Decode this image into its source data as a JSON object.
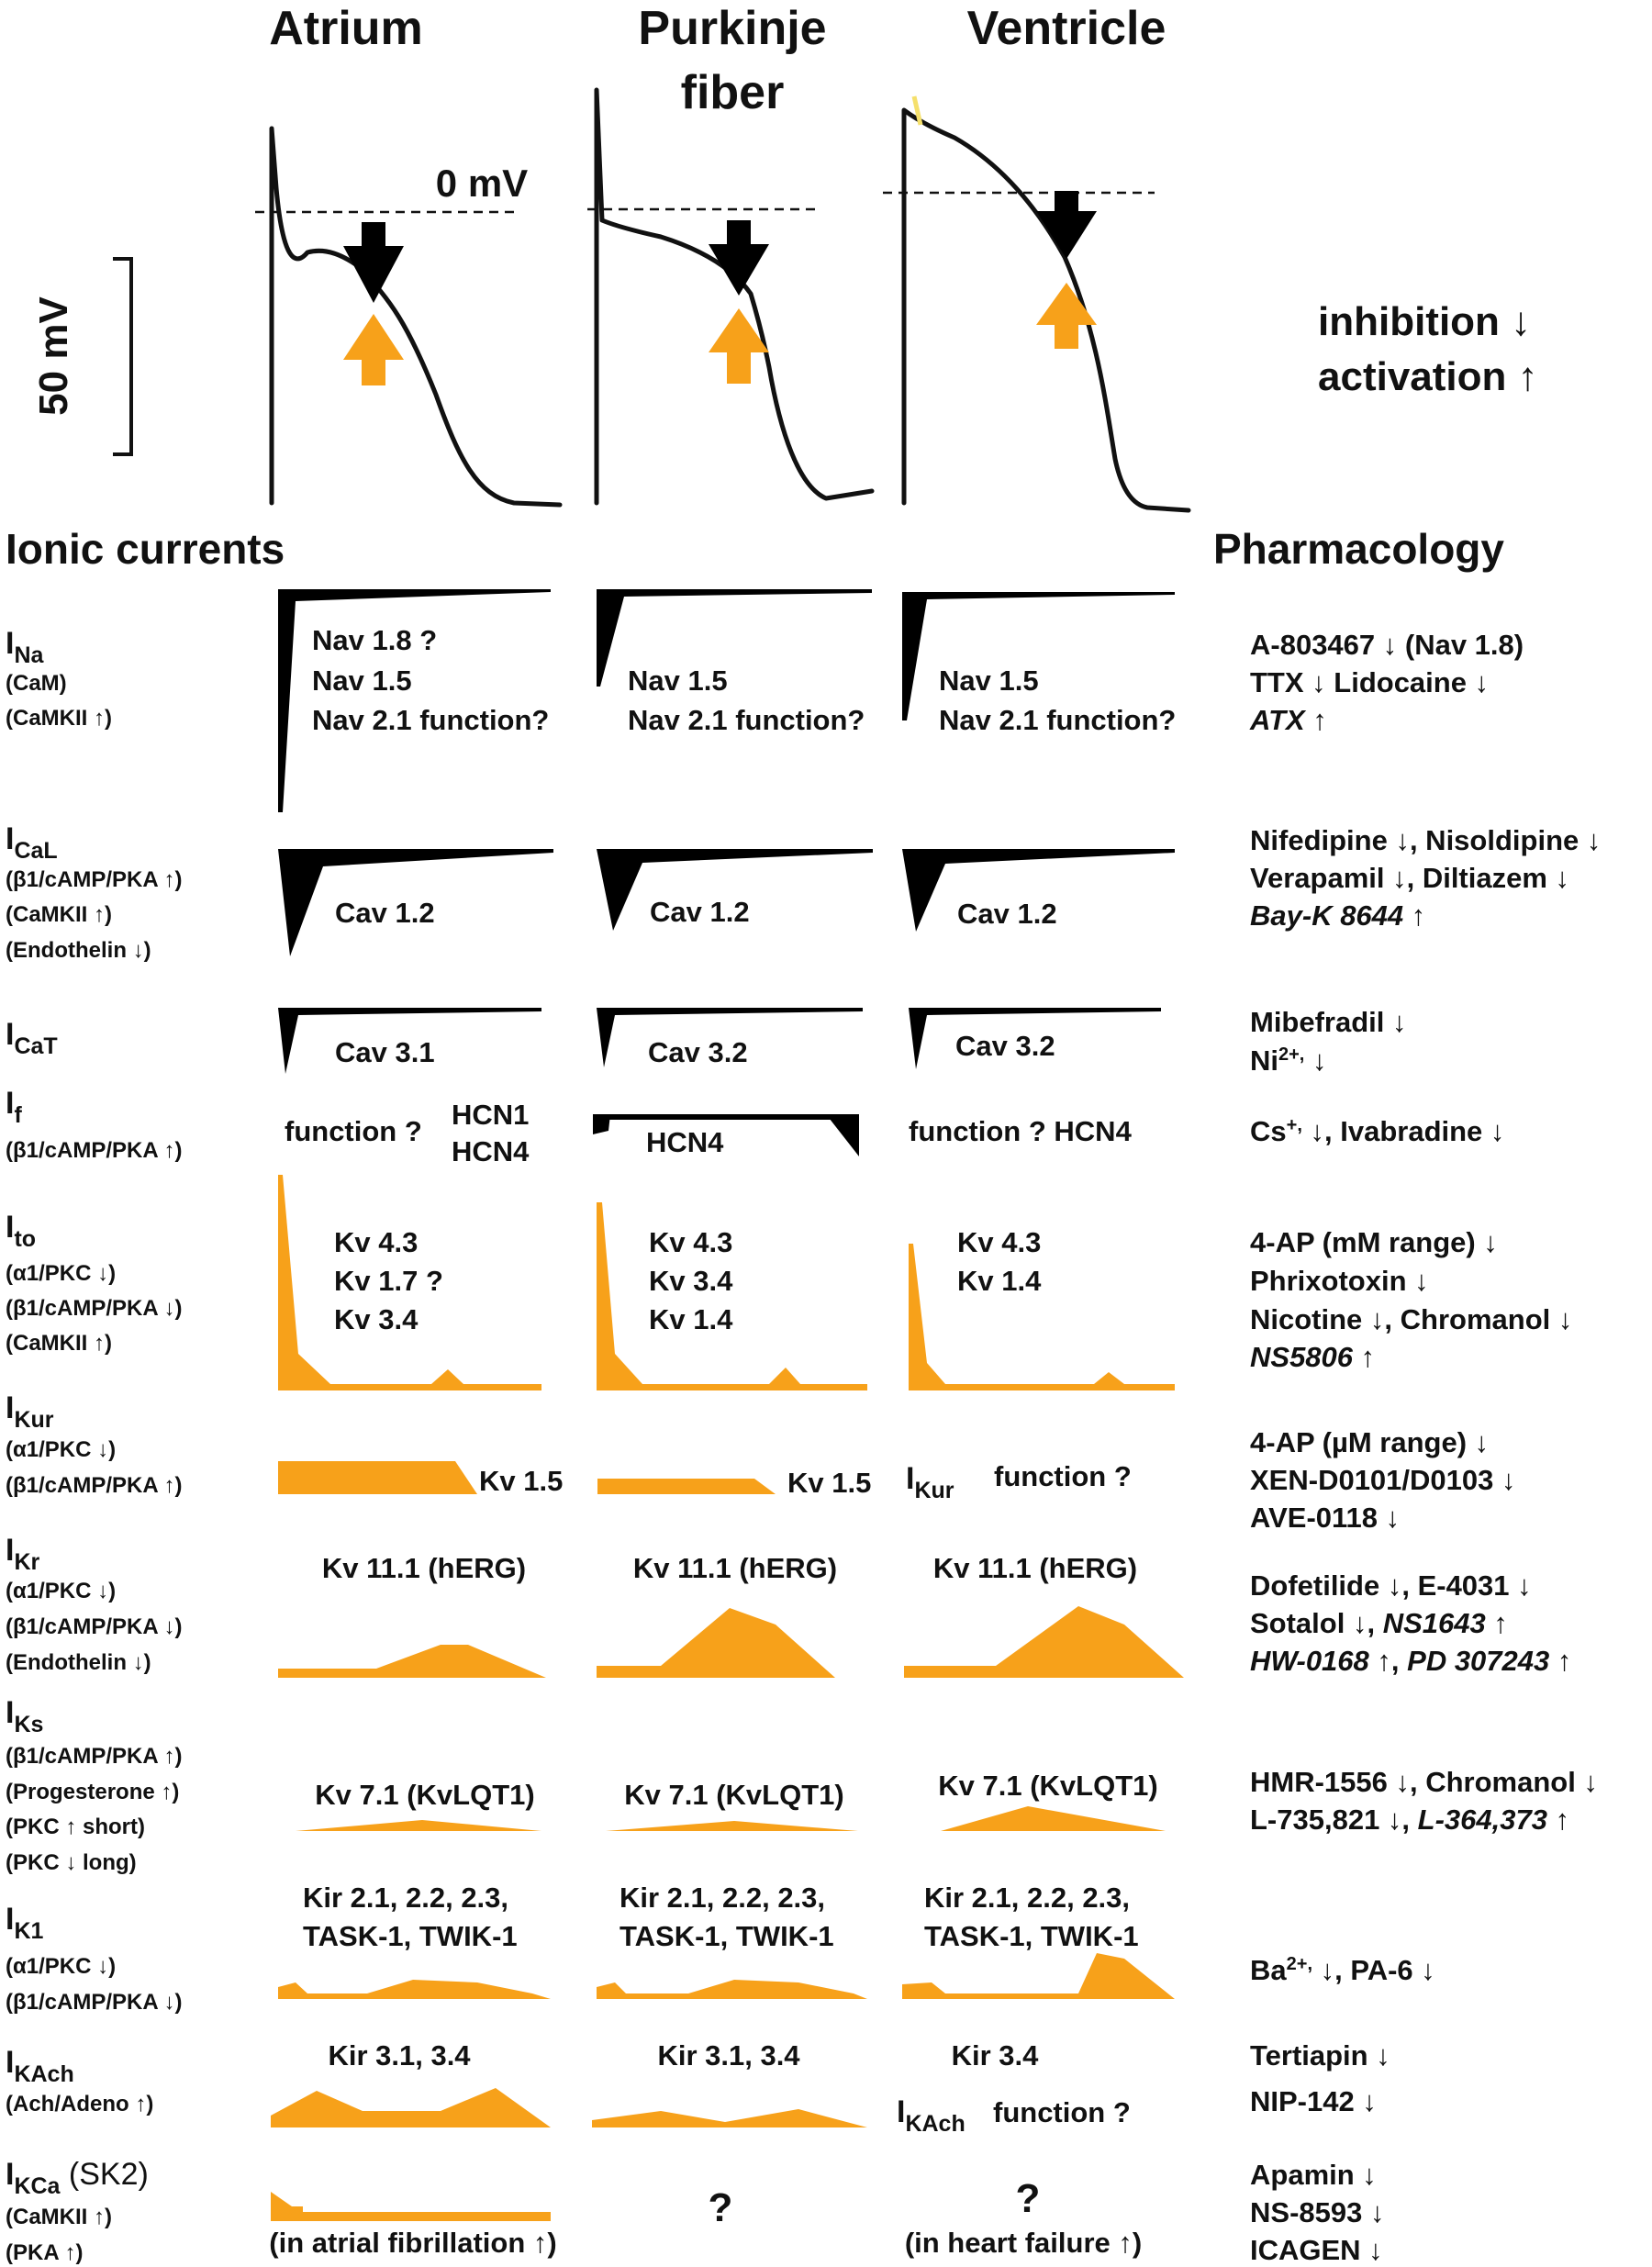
{
  "columns": {
    "atrium": "Atrium",
    "purkinje_line1": "Purkinje",
    "purkinje_line2": "fiber",
    "ventricle": "Ventricle"
  },
  "scale": {
    "zero_label": "0 mV",
    "bar_label": "50 mV"
  },
  "legend": {
    "inhibition": "inhibition ↓",
    "activation": "activation ↑"
  },
  "sections": {
    "ionic_currents": "Ionic currents",
    "pharmacology": "Pharmacology"
  },
  "colors": {
    "activation_arrow": "#f7a11a",
    "inhibition_arrow": "#000000",
    "current_fill": "#f7a11a"
  },
  "rows": {
    "ina": {
      "base": "I",
      "sub": "Na",
      "regs": [
        "(CaM)",
        "(CaMKII ↑)"
      ],
      "atrium": [
        "Nav 1.8 ?",
        "Nav 1.5",
        "Nav 2.1 function?"
      ],
      "purkinje": [
        "Nav 1.5",
        "Nav 2.1 function?"
      ],
      "ventricle": [
        "Nav 1.5",
        "Nav 2.1 function?"
      ],
      "pharm": [
        "A-803467 ↓ (Nav 1.8)",
        "TTX ↓ Lidocaine ↓"
      ],
      "pharm_italic": "ATX",
      "pharm_italic_tail": " ↑"
    },
    "ical": {
      "base": "I",
      "sub": "CaL",
      "regs": [
        "(β1/cAMP/PKA ↑)",
        "(CaMKII ↑)",
        "(Endothelin ↓)"
      ],
      "atrium": "Cav 1.2",
      "purkinje": "Cav 1.2",
      "ventricle": "Cav 1.2",
      "pharm": [
        "Nifedipine ↓, Nisoldipine ↓",
        "Verapamil ↓, Diltiazem ↓"
      ],
      "pharm_italic": "Bay-K 8644",
      "pharm_italic_tail": " ↑"
    },
    "icat": {
      "base": "I",
      "sub": "CaT",
      "atrium": "Cav 3.1",
      "purkinje": "Cav 3.2",
      "ventricle": "Cav 3.2",
      "pharm1": "Mibefradil ↓",
      "pharm2_a": "Ni",
      "pharm2_sup": "2+,",
      "pharm2_b": " ↓"
    },
    "if": {
      "base": "I",
      "sub": "f",
      "regs": [
        "(β1/cAMP/PKA ↑)"
      ],
      "atrium_fn": "function ?",
      "atrium_hcn1": "HCN1",
      "atrium_hcn4": "HCN4",
      "purkinje": "HCN4",
      "ventricle": "function ?  HCN4",
      "pharm_a": "Cs",
      "pharm_sup": "+,",
      "pharm_b": " ↓, Ivabradine ↓"
    },
    "ito": {
      "base": "I",
      "sub": "to",
      "regs": [
        "(α1/PKC ↓)",
        "(β1/cAMP/PKA ↓)",
        "(CaMKII ↑)"
      ],
      "atrium": [
        "Kv 4.3",
        "Kv 1.7 ?",
        "Kv 3.4"
      ],
      "purkinje": [
        "Kv 4.3",
        "Kv 3.4",
        "Kv 1.4"
      ],
      "ventricle": [
        "Kv 4.3",
        "Kv 1.4"
      ],
      "pharm": [
        "4-AP (mM range) ↓",
        "Phrixotoxin ↓",
        "Nicotine ↓, Chromanol ↓"
      ],
      "pharm_italic": "NS5806",
      "pharm_italic_tail": " ↑"
    },
    "ikur": {
      "base": "I",
      "sub": "Kur",
      "regs": [
        "(α1/PKC ↓)",
        "(β1/cAMP/PKA ↑)"
      ],
      "atrium": "Kv 1.5",
      "purkinje": "Kv 1.5",
      "ventricle_base": "I",
      "ventricle_sub": "Kur",
      "ventricle_fn": "function ?",
      "pharm": [
        "4-AP (µM range) ↓",
        "XEN-D0101/D0103 ↓",
        "AVE-0118 ↓"
      ]
    },
    "ikr": {
      "base": "I",
      "sub": "Kr",
      "regs": [
        "(α1/PKC ↓)",
        "(β1/cAMP/PKA ↓)",
        "(Endothelin ↓)"
      ],
      "atrium": "Kv 11.1 (hERG)",
      "purkinje": "Kv 11.1 (hERG)",
      "ventricle": "Kv 11.1 (hERG)",
      "pharm1": "Dofetilide ↓, E-4031 ↓",
      "pharm2_a": "Sotalol ↓, ",
      "pharm2_i": "NS1643",
      "pharm2_b": " ↑",
      "pharm3_i1": "HW-0168",
      "pharm3_m": " ↑, ",
      "pharm3_i2": "PD 307243",
      "pharm3_b": " ↑"
    },
    "iks": {
      "base": "I",
      "sub": "Ks",
      "regs": [
        "(β1/cAMP/PKA ↑)",
        "(Progesterone ↑)",
        "(PKC ↑ short)",
        "(PKC ↓ long)"
      ],
      "atrium": "Kv 7.1 (KvLQT1)",
      "purkinje": "Kv 7.1 (KvLQT1)",
      "ventricle": "Kv 7.1 (KvLQT1)",
      "pharm1": "HMR-1556 ↓, Chromanol ↓",
      "pharm2_a": "L-735,821 ↓, ",
      "pharm2_i": "L-364,373",
      "pharm2_b": " ↑"
    },
    "ik1": {
      "base": "I",
      "sub": "K1",
      "regs": [
        "(α1/PKC ↓)",
        "(β1/cAMP/PKA ↓)"
      ],
      "line1": "Kir 2.1, 2.2, 2.3,",
      "line2": "TASK-1, TWIK-1",
      "pharm_a": "Ba",
      "pharm_sup": "2+,",
      "pharm_b": " ↓, PA-6 ↓"
    },
    "ikach": {
      "base": "I",
      "sub": "KAch",
      "regs": [
        "(Ach/Adeno ↑)"
      ],
      "atrium": "Kir 3.1, 3.4",
      "purkinje": "Kir 3.1, 3.4",
      "ventricle": "Kir 3.4",
      "ventricle_base": "I",
      "ventricle_sub": "KAch",
      "ventricle_fn": " function ?",
      "pharm": [
        "Tertiapin ↓",
        "NIP-142 ↓"
      ]
    },
    "ikca": {
      "base": "I",
      "sub": "KCa",
      "extra": " (SK2)",
      "regs": [
        "(CaMKII ↑)",
        "(PKA ↑)"
      ],
      "atrium_note": "(in atrial fibrillation ↑)",
      "purkinje_q": "?",
      "ventricle_q": "?",
      "ventricle_note": "(in heart failure ↑)",
      "pharm": [
        "Apamin ↓",
        "NS-8593 ↓",
        "ICAGEN ↓"
      ]
    }
  }
}
